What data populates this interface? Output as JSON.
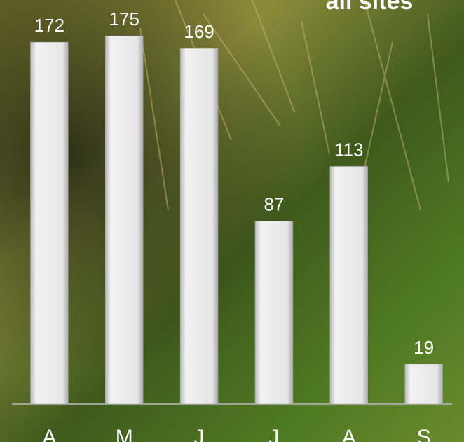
{
  "chart_data": {
    "type": "bar",
    "title": "all sites",
    "categories": [
      "A",
      "M",
      "J",
      "J",
      "A",
      "S"
    ],
    "values": [
      172,
      175,
      169,
      87,
      113,
      19
    ],
    "color": "#e6e6e6",
    "ylim": [
      0,
      192
    ]
  }
}
